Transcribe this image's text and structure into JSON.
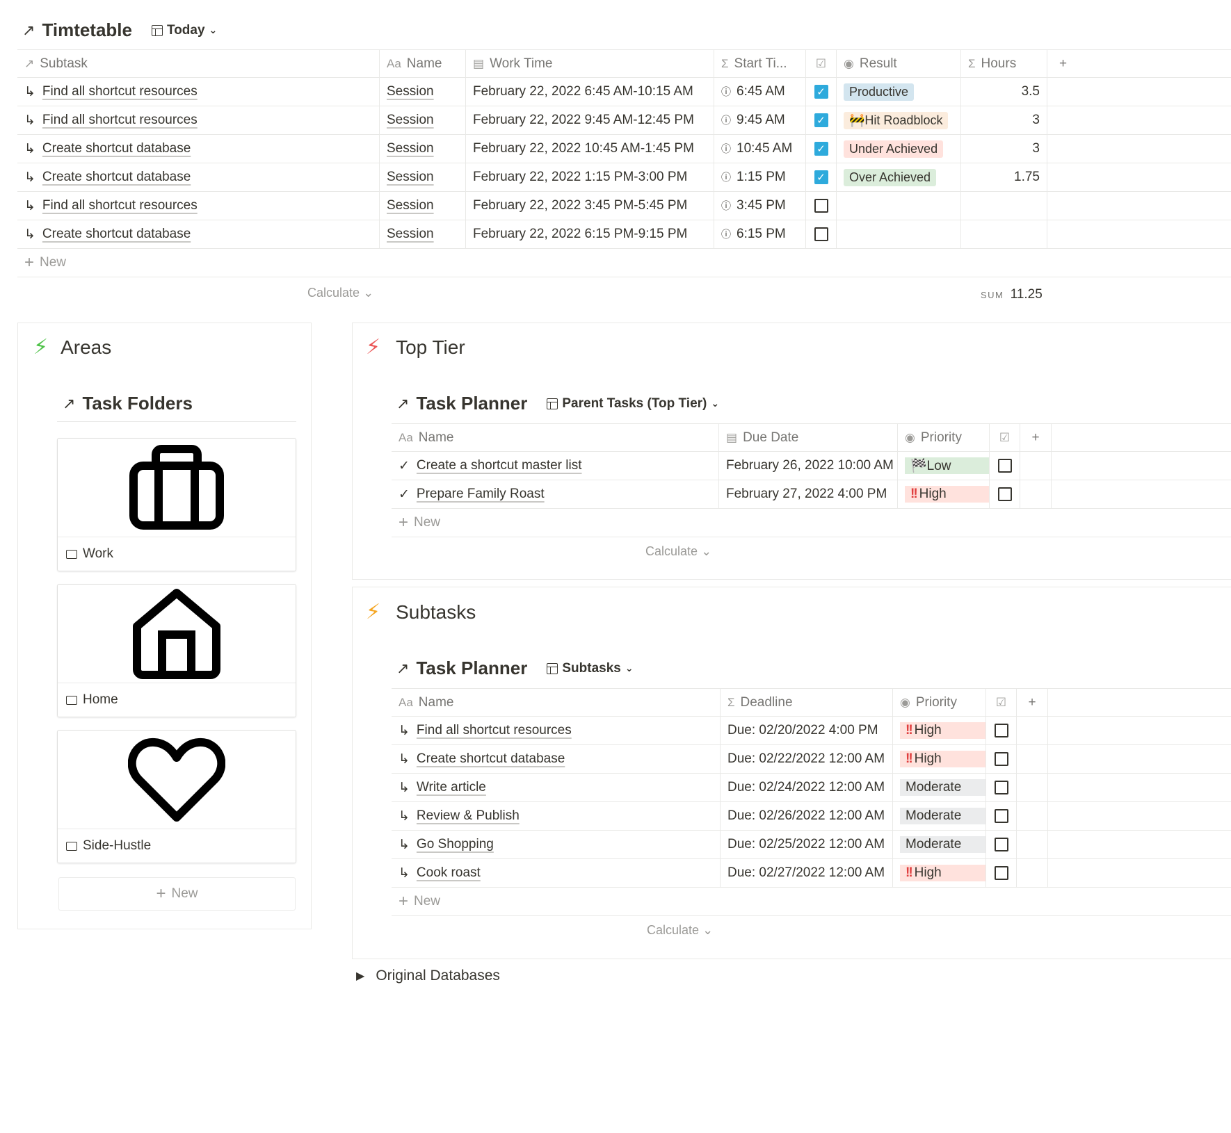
{
  "timetable": {
    "title": "Timtetable",
    "view": "Today",
    "columns": [
      "Subtask",
      "Name",
      "Work Time",
      "Start Ti...",
      "Result",
      "Hours"
    ],
    "rows": [
      {
        "subtask": "Find all shortcut resources",
        "name": "Session",
        "work_time": "February 22, 2022 6:45 AM-10:15 AM",
        "start": "6:45 AM",
        "done": true,
        "result": "Productive",
        "hours": "3.5"
      },
      {
        "subtask": "Find all shortcut resources",
        "name": "Session",
        "work_time": "February 22, 2022 9:45 AM-12:45 PM",
        "start": "9:45 AM",
        "done": true,
        "result": "🚧Hit Roadblock",
        "hours": "3"
      },
      {
        "subtask": "Create shortcut database",
        "name": "Session",
        "work_time": "February 22, 2022 10:45 AM-1:45 PM",
        "start": "10:45 AM",
        "done": true,
        "result": "Under Achieved",
        "hours": "3"
      },
      {
        "subtask": "Create shortcut database",
        "name": "Session",
        "work_time": "February 22, 2022 1:15 PM-3:00 PM",
        "start": "1:15 PM",
        "done": true,
        "result": "Over Achieved",
        "hours": "1.75"
      },
      {
        "subtask": "Find all shortcut resources",
        "name": "Session",
        "work_time": "February 22, 2022 3:45 PM-5:45 PM",
        "start": "3:45 PM",
        "done": false,
        "result": "",
        "hours": ""
      },
      {
        "subtask": "Create shortcut database",
        "name": "Session",
        "work_time": "February 22, 2022 6:15 PM-9:15 PM",
        "start": "6:15 PM",
        "done": false,
        "result": "",
        "hours": ""
      }
    ],
    "new_label": "New",
    "calculate_label": "Calculate",
    "sum_label": "SUM",
    "sum_value": "11.25",
    "colors": {
      "productive": "#d3e5ef",
      "roadblock": "#fbecdd",
      "under": "#ffe2dd",
      "over": "#dbeddb",
      "checkbox": "#2eaadc"
    }
  },
  "areas": {
    "title": "Areas",
    "folders_title": "Task Folders",
    "folders": [
      {
        "label": "Work",
        "icon": "briefcase-icon"
      },
      {
        "label": "Home",
        "icon": "house-icon"
      },
      {
        "label": "Side-Hustle",
        "icon": "heart-icon"
      }
    ],
    "new_label": "New",
    "accent": "#4dc247"
  },
  "top_tier": {
    "title": "Top Tier",
    "planner_title": "Task Planner",
    "view": "Parent Tasks (Top Tier)",
    "columns": [
      "Name",
      "Due Date",
      "Priority"
    ],
    "rows": [
      {
        "name": "Create a shortcut master list",
        "due": "February 26, 2022 10:00 AM",
        "priority": "🏁Low",
        "done": false
      },
      {
        "name": "Prepare Family Roast",
        "due": "February 27, 2022 4:00 PM",
        "priority": "High",
        "done": false
      }
    ],
    "new_label": "New",
    "calculate_label": "Calculate",
    "accent": "#eb5757"
  },
  "subtasks": {
    "title": "Subtasks",
    "planner_title": "Task Planner",
    "view": "Subtasks",
    "columns": [
      "Name",
      "Deadline",
      "Priority"
    ],
    "rows": [
      {
        "name": "Find all shortcut resources",
        "deadline": "Due: 02/20/2022 4:00 PM",
        "priority": "High",
        "level": "high"
      },
      {
        "name": "Create shortcut database",
        "deadline": "Due: 02/22/2022 12:00 AM",
        "priority": "High",
        "level": "high"
      },
      {
        "name": "Write article",
        "deadline": "Due: 02/24/2022 12:00 AM",
        "priority": "Moderate",
        "level": "moderate"
      },
      {
        "name": "Review & Publish",
        "deadline": "Due: 02/26/2022 12:00 AM",
        "priority": "Moderate",
        "level": "moderate"
      },
      {
        "name": "Go Shopping",
        "deadline": "Due: 02/25/2022 12:00 AM",
        "priority": "Moderate",
        "level": "moderate"
      },
      {
        "name": "Cook roast",
        "deadline": "Due: 02/27/2022 12:00 AM",
        "priority": "High",
        "level": "high"
      }
    ],
    "new_label": "New",
    "calculate_label": "Calculate",
    "accent": "#f5a623"
  },
  "toggle": {
    "label": "Original Databases"
  }
}
